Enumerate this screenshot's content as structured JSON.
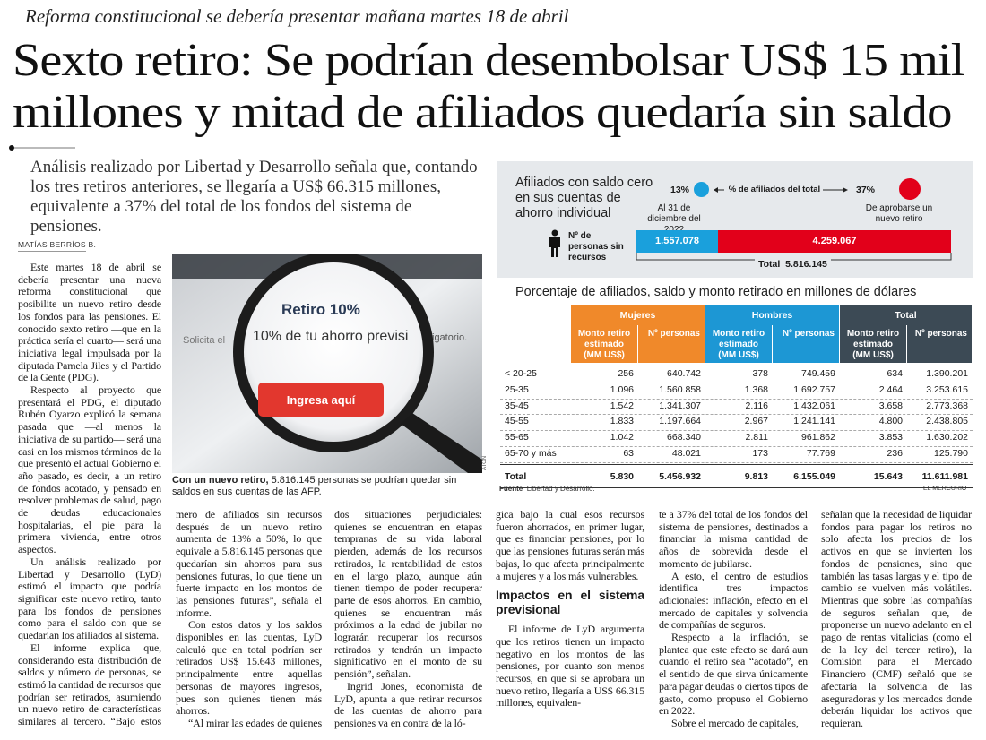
{
  "header": {
    "kicker": "Reforma constitucional se debería presentar mañana martes 18 de abril",
    "title_lines": [
      "Sexto retiro: Se podrían desembolsar US$ 15 mil",
      "millones y mitad de afiliados quedaría sin saldo"
    ],
    "lead": "Análisis realizado por Libertad y Desarrollo señala que, contando los tres retiros anteriores, se llegaría a US$ 66.315 millones, equivalente a 37% del total de los fondos del sistema de pensiones.",
    "byline": "MATÍAS BERRÍOS B."
  },
  "photo": {
    "screen_title": "Retiro 10%",
    "screen_text": "10% de tu ahorro previsi",
    "screen_left": "Solicita el",
    "screen_right": "igatorio.",
    "button": "Ingresa aquí",
    "credit": "ATON",
    "caption_bold": "Con un nuevo retiro,",
    "caption": "5.816.145 personas se podrían quedar sin saldos en sus cuentas de las AFP."
  },
  "article": {
    "columns": [
      {
        "paragraphs": [
          "Este martes 18 de abril se debería presentar una nueva reforma constitucional que posibilite un nuevo retiro desde los fondos para las pensiones. El conocido sexto retiro —que en la práctica sería el cuarto— será una iniciativa legal impulsada por la diputada Pamela Jiles y el Partido de la Gente (PDG).",
          "Respecto al proyecto que presentará el PDG, el diputado Rubén Oyarzo explicó la semana pasada que —al menos la iniciativa de su partido— será una casi en los mismos términos de la que presentó el actual Gobierno el año pasado, es decir, a un retiro de fondos acotado, y pensado en resolver problemas de salud, pago de deudas educacionales hospitalarias, el pie para la primera vivienda, entre otros aspectos.",
          "Un análisis realizado por Libertad y Desarrollo (LyD) estimó el impacto que podría significar este nuevo retiro, tanto para los fondos de pensiones como para el saldo con que se quedarían los afiliados al sistema.",
          "El informe explica que, considerando esta distribución de saldos y número de personas, se estimó la cantidad de recursos que podrían ser retirados, asumiendo un nuevo retiro de características similares al tercero. “Bajo estos supuestos, el nu-"
        ]
      },
      {
        "paragraphs": [
          "mero de afiliados sin recursos después de un nuevo retiro aumenta de 13% a 50%, lo que equivale a 5.816.145 personas que quedarían sin ahorros para sus pensiones futuras, lo que tiene un fuerte impacto en los montos de las pensiones futuras”, señala el informe.",
          "Con estos datos y los saldos disponibles en las cuentas, LyD calculó que en total podrían ser retirados US$ 15.643 millones, principalmente entre aquellas personas de mayores ingresos, pues son quienes tienen más ahorros.",
          "“Al mirar las edades de quienes podrían retirar, se observan"
        ]
      },
      {
        "paragraphs": [
          "dos situaciones perjudiciales: quienes se encuentran en etapas tempranas de su vida laboral pierden, además de los recursos retirados, la rentabilidad de estos en el largo plazo, aunque aún tienen tiempo de poder recuperar parte de esos ahorros. En cambio, quienes se encuentran más próximos a la edad de jubilar no lograrán recuperar los recursos retirados y tendrán un impacto significativo en el monto de su pensión”, señalan.",
          "Ingrid Jones, economista de LyD, apunta a que retirar recursos de las cuentas de ahorro para pensiones va en contra de la ló-"
        ]
      },
      {
        "paragraphs": [
          "gica bajo la cual esos recursos fueron ahorrados, en primer lugar, que es financiar pensiones, por lo que las pensiones futuras serán más bajas, lo que afecta principalmente a mujeres y a los más vulnerables."
        ],
        "subhead": "Impactos en el sistema previsional",
        "more": [
          "El informe de LyD argumenta que los retiros tienen un impacto negativo en los montos de las pensiones, por cuanto son menos recursos, en que si se aprobara un nuevo retiro, llegaría a US$ 66.315 millones, equivalen-"
        ]
      },
      {
        "paragraphs": [
          "te a 37% del total de los fondos del sistema de pensiones, destinados a financiar la misma cantidad de años de sobrevida desde el momento de jubilarse.",
          "A esto, el centro de estudios identifica tres impactos adicionales: inflación, efecto en el mercado de capitales y solvencia de compañías de seguros.",
          "Respecto a la inflación, se plantea que este efecto se dará aun cuando el retiro sea “acotado”, en el sentido de que sirva únicamente para pagar deudas o ciertos tipos de gasto, como propuso el Gobierno en 2022.",
          "Sobre el mercado de capitales,"
        ]
      },
      {
        "paragraphs": [
          "señalan que la necesidad de liquidar fondos para pagar los retiros no solo afecta los precios de los activos en que se invierten los fondos de pensiones, sino que también las tasas largas y el tipo de cambio se vuelven más volátiles. Mientras que sobre las compañías de seguros señalan que, de proponerse un nuevo adelanto en el pago de rentas vitalicias (como el de la ley del tercer retiro), la Comisión para el Mercado Financiero (CMF) señaló que se afectaría la solvencia de las aseguradoras y los mercados donde deberán liquidar los activos que requieran."
        ]
      }
    ]
  },
  "infographic": {
    "title": "Afiliados con saldo cero en sus cuentas de ahorro individual",
    "pct_before": "13%",
    "pct_label": "% de afiliados del total",
    "pct_after": "37%",
    "before_label": "Al 31 de diciembre del 2022",
    "after_label": "De aprobarse un nuevo retiro",
    "people_label": "Nº de personas sin recursos",
    "people_before": "1.557.078",
    "people_after": "4.259.067",
    "total_label": "Total",
    "total_value": "5.816.145",
    "table_title": "Porcentaje de afiliados, saldo y monto retirado en millones de dólares",
    "groups": [
      {
        "name": "Mujeres",
        "color": "#f0892a"
      },
      {
        "name": "Hombres",
        "color": "#1d97d4"
      },
      {
        "name": "Total",
        "color": "#3c4a55"
      }
    ],
    "subheaders": [
      "Monto retiro estimado (MM US$)",
      "Nº personas"
    ],
    "rows": [
      [
        "< 20-25",
        "256",
        "640.742",
        "378",
        "749.459",
        "634",
        "1.390.201"
      ],
      [
        "25-35",
        "1.096",
        "1.560.858",
        "1.368",
        "1.692.757",
        "2.464",
        "3.253.615"
      ],
      [
        "35-45",
        "1.542",
        "1.341.307",
        "2.116",
        "1.432.061",
        "3.658",
        "2.773.368"
      ],
      [
        "45-55",
        "1.833",
        "1.197.664",
        "2.967",
        "1.241.141",
        "4.800",
        "2.438.805"
      ],
      [
        "55-65",
        "1.042",
        "668.340",
        "2.811",
        "961.862",
        "3.853",
        "1.630.202"
      ],
      [
        "65-70 y más",
        "63",
        "48.021",
        "173",
        "77.769",
        "236",
        "125.790"
      ]
    ],
    "total_row": [
      "Total",
      "5.830",
      "5.456.932",
      "9.813",
      "6.155.049",
      "15.643",
      "11.611.981"
    ],
    "source_label": "Fuente",
    "source": "Libertad y Desarrollo.",
    "publisher": "EL MERCURIO"
  }
}
